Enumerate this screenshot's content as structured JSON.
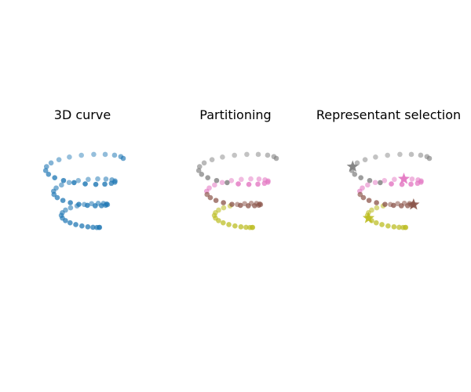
{
  "colors": {
    "blue": "#1f77b4",
    "pink": "#e377c2",
    "gray": "#7f7f7f",
    "olive": "#bcbd22",
    "brown": "#8c564b"
  },
  "chart_data": [
    {
      "type": "scatter",
      "title": "3D curve",
      "projection": "3d",
      "axis": "off",
      "curve": "three-turn spiral on a cone, radius growing with height",
      "points": 60,
      "series": [
        {
          "color": "blue",
          "start": 0,
          "end": 60
        }
      ],
      "representatives": []
    },
    {
      "type": "scatter",
      "title": "Partitioning",
      "projection": "3d",
      "axis": "off",
      "curve": "three-turn spiral on a cone, radius growing with height",
      "points": 60,
      "series": [
        {
          "color": "olive",
          "start": 0,
          "end": 15
        },
        {
          "color": "brown",
          "start": 15,
          "end": 30
        },
        {
          "color": "pink",
          "start": 30,
          "end": 45
        },
        {
          "color": "gray",
          "start": 45,
          "end": 60
        }
      ],
      "representatives": []
    },
    {
      "type": "scatter",
      "title": "Representant selection",
      "projection": "3d",
      "axis": "off",
      "curve": "three-turn spiral on a cone, radius growing with height",
      "points": 60,
      "series": [
        {
          "color": "olive",
          "start": 0,
          "end": 15
        },
        {
          "color": "brown",
          "start": 15,
          "end": 30
        },
        {
          "color": "pink",
          "start": 30,
          "end": 45
        },
        {
          "color": "gray",
          "start": 45,
          "end": 60
        }
      ],
      "representatives": [
        {
          "index": 9,
          "color": "olive",
          "marker": "star"
        },
        {
          "index": 20,
          "color": "brown",
          "marker": "star"
        },
        {
          "index": 36,
          "color": "pink",
          "marker": "star"
        },
        {
          "index": 50,
          "color": "gray",
          "marker": "star"
        }
      ]
    }
  ]
}
